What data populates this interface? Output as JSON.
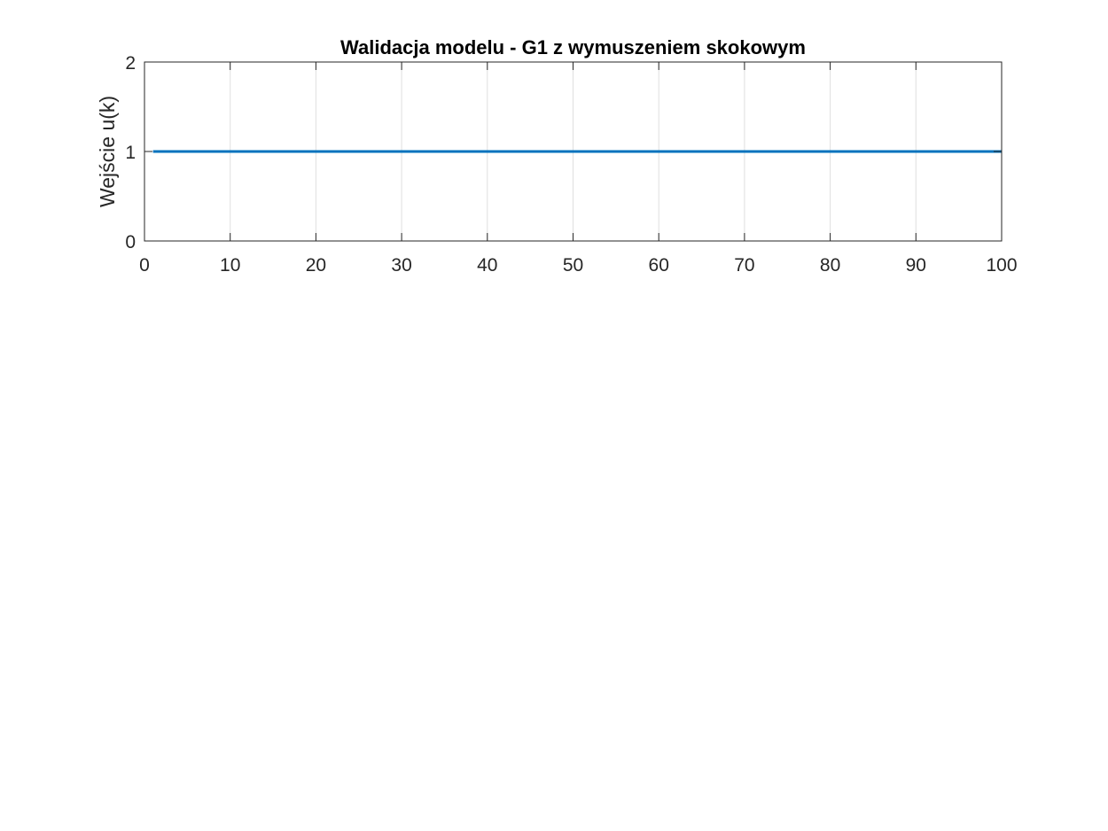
{
  "chart_data": {
    "type": "line",
    "title": "Walidacja modelu - G1 z wymuszeniem skokowym",
    "xlabel": "",
    "ylabel": "Wejście u(k)",
    "xlim": [
      0,
      100
    ],
    "ylim": [
      0,
      2
    ],
    "x_ticks": [
      "0",
      "10",
      "20",
      "30",
      "40",
      "50",
      "60",
      "70",
      "80",
      "90",
      "100"
    ],
    "y_ticks": [
      "0",
      "1",
      "2"
    ],
    "grid": "vertical",
    "legend": "none",
    "series": [
      {
        "color": "#0072BD",
        "x": [
          1,
          100
        ],
        "y": [
          1,
          1
        ]
      }
    ]
  }
}
